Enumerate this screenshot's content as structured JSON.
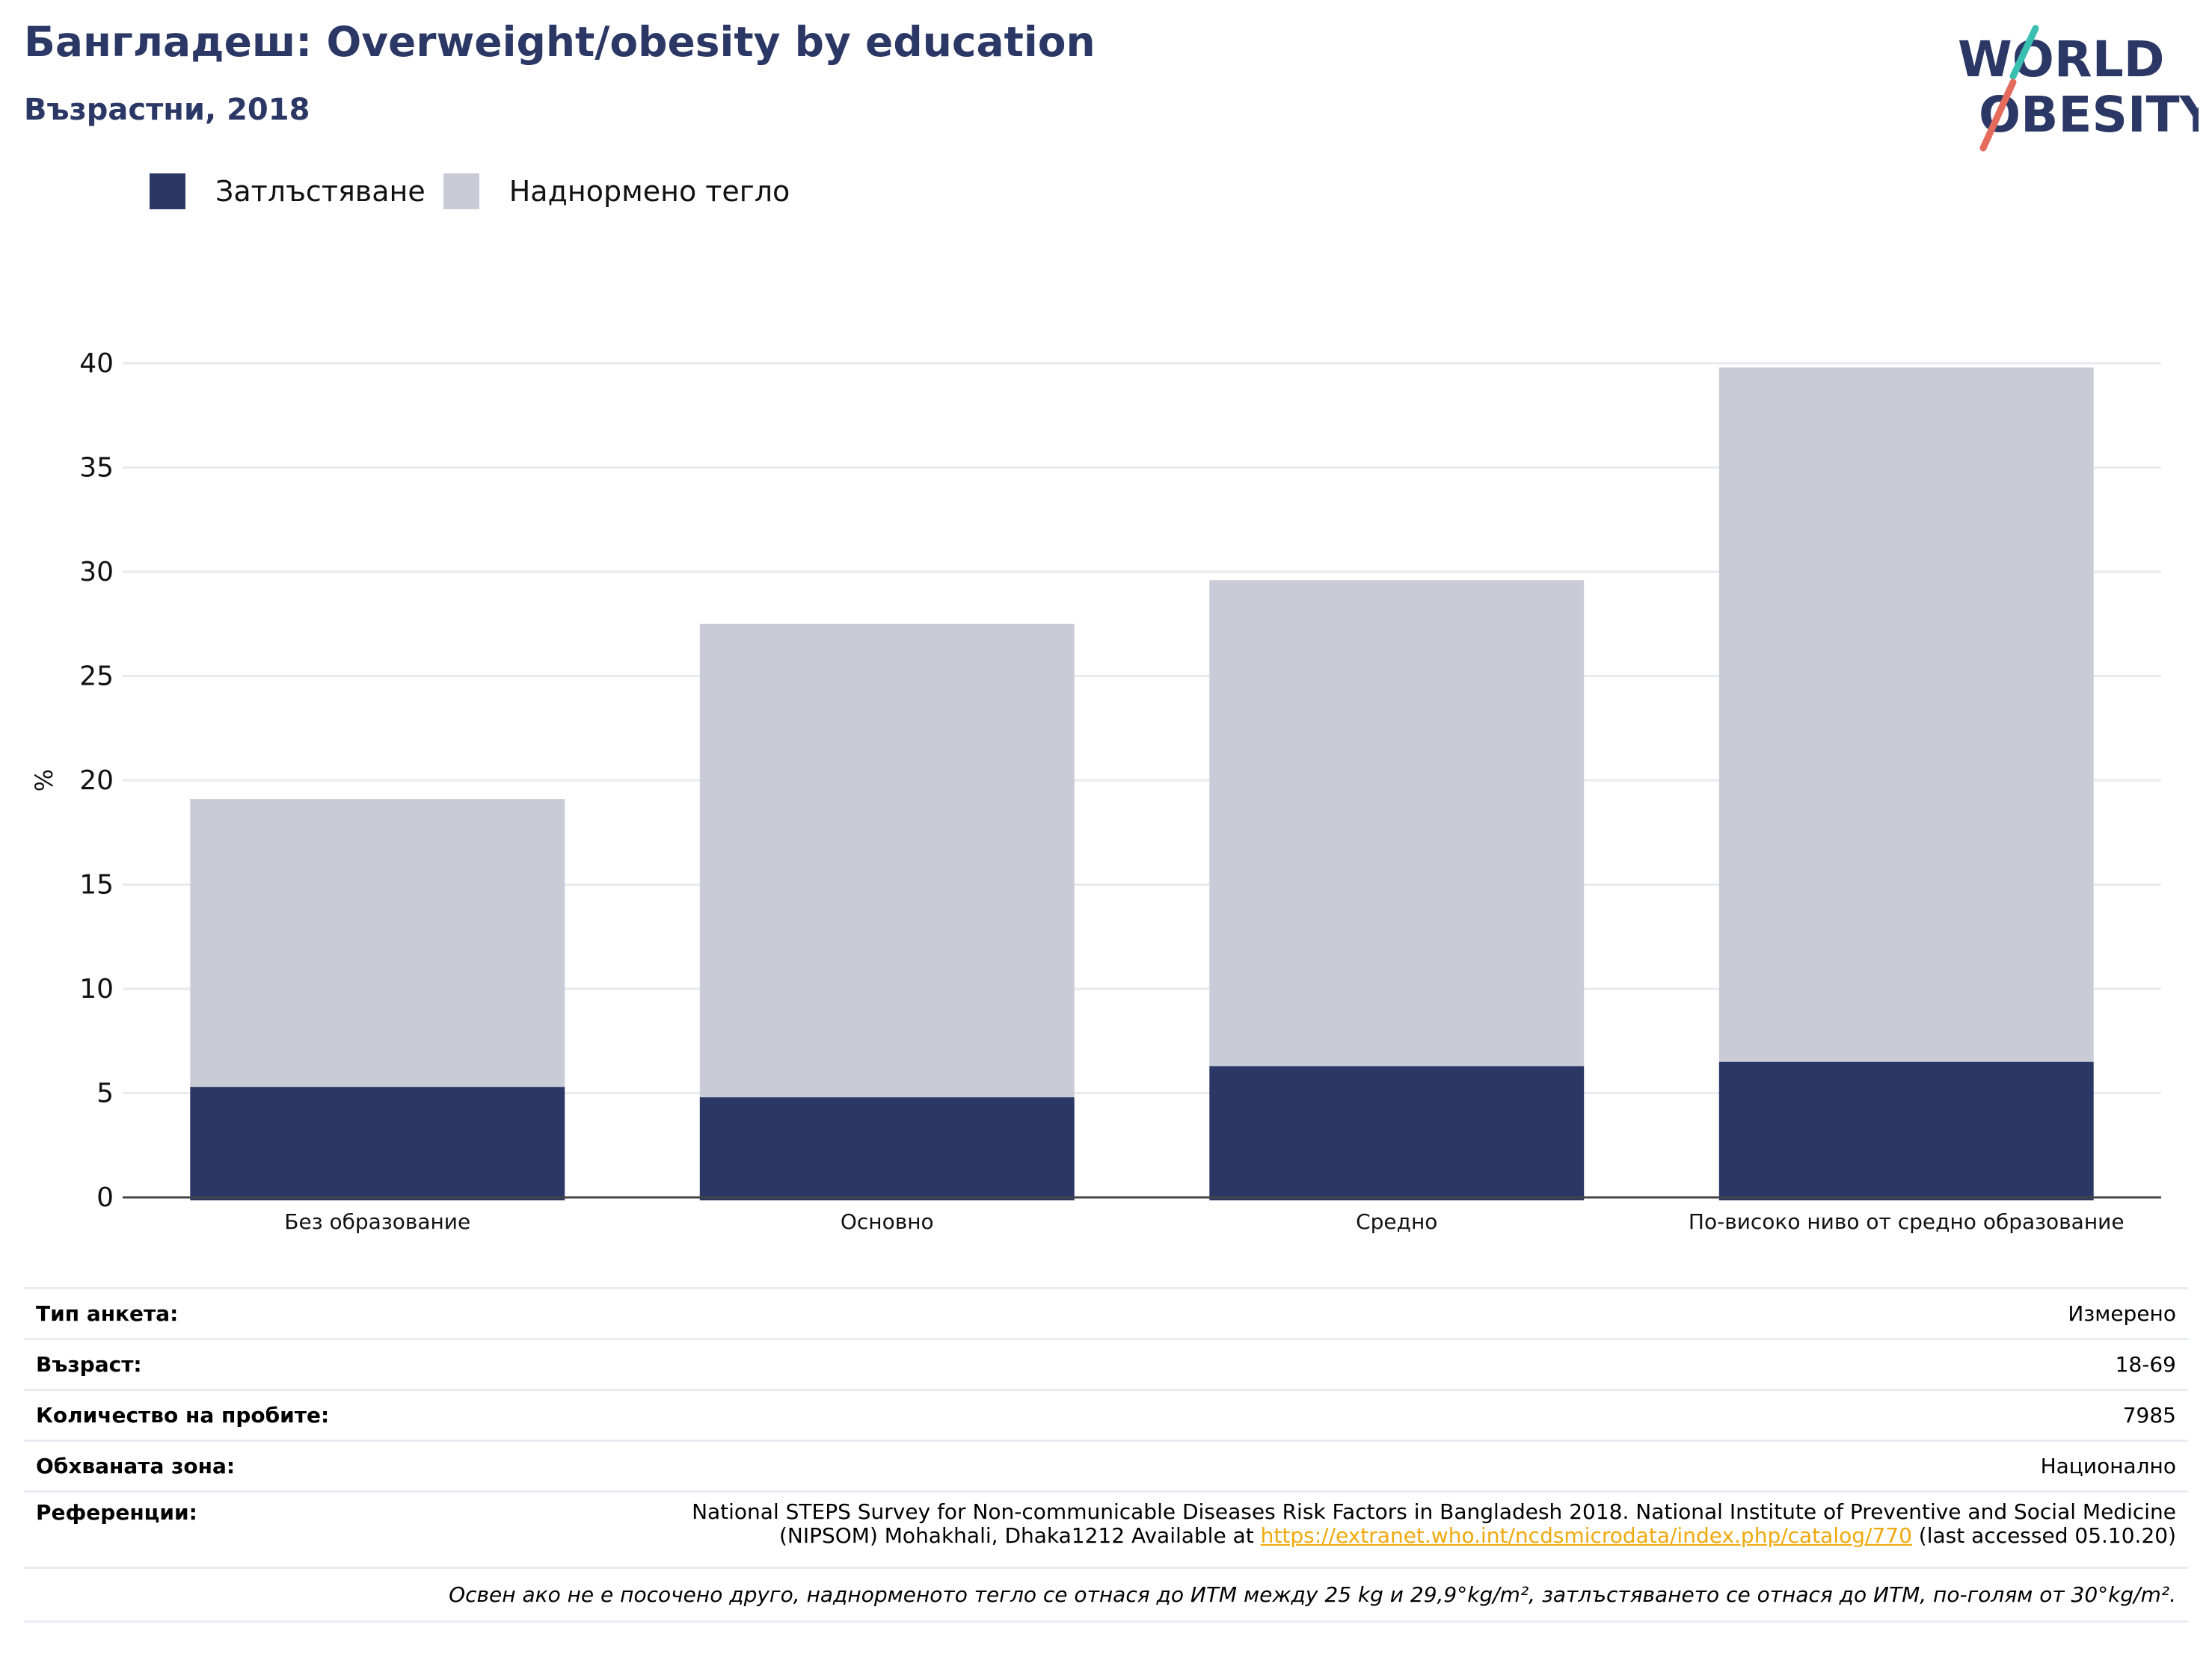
{
  "header": {
    "title": "Бангладеш: Overweight/obesity by education",
    "subtitle": "Възрастни, 2018",
    "logo_text_line1": "WORLD",
    "logo_text_line2": "OBESITY"
  },
  "colors": {
    "obesity": "#2b3765",
    "overweight": "#c9cbd7",
    "title": "#2b3765",
    "link": "#f0a90c"
  },
  "legend": [
    {
      "label": "Затлъстяване",
      "color": "#2b3765"
    },
    {
      "label": "Наднормено тегло",
      "color": "#c9cbd7"
    }
  ],
  "chart_data": {
    "type": "bar",
    "stacked": true,
    "categories": [
      "Без образование",
      "Основно",
      "Средно",
      "По-високо ниво от средно образование"
    ],
    "series": [
      {
        "name": "Затлъстяване",
        "values": [
          5.3,
          4.8,
          6.3,
          6.5
        ]
      },
      {
        "name": "Наднормено тегло",
        "values": [
          13.8,
          22.7,
          23.3,
          33.3
        ]
      }
    ],
    "ylabel": "%",
    "ylim": [
      0,
      40
    ],
    "yticks": [
      0,
      5,
      10,
      15,
      20,
      25,
      30,
      35,
      40
    ],
    "grid": true,
    "legend_position": "top-left"
  },
  "meta": {
    "survey_type_label": "Тип анкета:",
    "survey_type_value": "Измерено",
    "age_label": "Възраст:",
    "age_value": "18-69",
    "sample_label": "Количество на пробите:",
    "sample_value": "7985",
    "area_label": "Обхваната зона:",
    "area_value": "Национално",
    "refs_label": "Референции:",
    "refs_text_line1": "National STEPS Survey for Non-communicable Diseases Risk Factors in Bangladesh 2018. National Institute of Preventive and Social Medicine",
    "refs_text_line2_pre": "(NIPSOM) Mohakhali, Dhaka1212 Available at ",
    "refs_link": "https://extranet.who.int/ncdsmicrodata/index.php/catalog/770",
    "refs_text_line2_post": " (last accessed 05.10.20)",
    "note": "Освен ако не е посочено друго, наднорменото тегло се отнася до ИТМ между 25 kg и 29,9°kg/m², затлъстяването се отнася до ИТМ, по-голям от 30°kg/m²."
  }
}
